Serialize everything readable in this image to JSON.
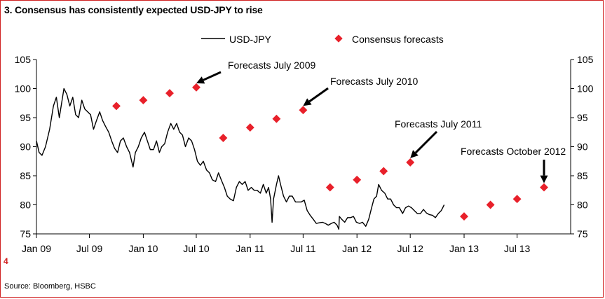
{
  "title": "3. Consensus has consistently expected USD-JPY to rise",
  "page_number": "4",
  "source": "Source: Bloomberg, HSBC",
  "colors": {
    "line": "#000000",
    "forecast": "#e8202a",
    "frame": "#d02020"
  },
  "chart_data": {
    "type": "line",
    "title": "3. Consensus has consistently expected USD-JPY to rise",
    "xlabel": "",
    "ylabel": "",
    "ylim": [
      75,
      105
    ],
    "xlim": [
      "2009-01-01",
      "2013-12-31"
    ],
    "grid": false,
    "legend": {
      "position": "top",
      "entries": [
        "USD-JPY",
        "Consensus forecasts"
      ]
    },
    "y_ticks_left": [
      "105",
      "100",
      "95",
      "90",
      "85",
      "80",
      "75"
    ],
    "y_ticks_right": [
      "105",
      "100",
      "95",
      "90",
      "85",
      "80",
      "75"
    ],
    "y_tick_values": [
      105,
      100,
      95,
      90,
      85,
      80,
      75
    ],
    "x_ticks": [
      {
        "label": "Jan 09",
        "date": "2009-01-01"
      },
      {
        "label": "Jul 09",
        "date": "2009-07-01"
      },
      {
        "label": "Jan 10",
        "date": "2010-01-01"
      },
      {
        "label": "Jul 10",
        "date": "2010-07-01"
      },
      {
        "label": "Jan 11",
        "date": "2011-01-01"
      },
      {
        "label": "Jul 11",
        "date": "2011-07-01"
      },
      {
        "label": "Jan 12",
        "date": "2012-01-01"
      },
      {
        "label": "Jul 12",
        "date": "2012-07-01"
      },
      {
        "label": "Jan 13",
        "date": "2013-01-01"
      },
      {
        "label": "Jul 13",
        "date": "2013-07-01"
      }
    ],
    "series": [
      {
        "name": "USD-JPY",
        "style": "line",
        "points": [
          [
            "2009-01-01",
            91
          ],
          [
            "2009-01-10",
            89
          ],
          [
            "2009-01-20",
            88.5
          ],
          [
            "2009-02-01",
            90
          ],
          [
            "2009-02-15",
            93
          ],
          [
            "2009-02-28",
            97
          ],
          [
            "2009-03-10",
            98.5
          ],
          [
            "2009-03-20",
            95
          ],
          [
            "2009-04-05",
            100
          ],
          [
            "2009-04-15",
            99
          ],
          [
            "2009-04-25",
            97
          ],
          [
            "2009-05-05",
            98.5
          ],
          [
            "2009-05-15",
            95.5
          ],
          [
            "2009-05-25",
            95
          ],
          [
            "2009-06-05",
            98
          ],
          [
            "2009-06-15",
            96.5
          ],
          [
            "2009-06-25",
            96
          ],
          [
            "2009-07-05",
            95.5
          ],
          [
            "2009-07-15",
            93
          ],
          [
            "2009-07-25",
            94.5
          ],
          [
            "2009-08-05",
            96
          ],
          [
            "2009-08-15",
            94.5
          ],
          [
            "2009-08-25",
            93.5
          ],
          [
            "2009-09-05",
            92.5
          ],
          [
            "2009-09-15",
            91
          ],
          [
            "2009-09-25",
            89.7
          ],
          [
            "2009-10-05",
            89
          ],
          [
            "2009-10-15",
            91
          ],
          [
            "2009-10-25",
            91.5
          ],
          [
            "2009-11-05",
            90
          ],
          [
            "2009-11-15",
            89
          ],
          [
            "2009-11-27",
            86.5
          ],
          [
            "2009-12-05",
            89
          ],
          [
            "2009-12-15",
            90
          ],
          [
            "2009-12-25",
            91.5
          ],
          [
            "2010-01-05",
            92.5
          ],
          [
            "2010-01-15",
            91
          ],
          [
            "2010-01-25",
            89.5
          ],
          [
            "2010-02-05",
            89.5
          ],
          [
            "2010-02-15",
            91
          ],
          [
            "2010-02-25",
            89
          ],
          [
            "2010-03-05",
            90
          ],
          [
            "2010-03-15",
            90.5
          ],
          [
            "2010-03-25",
            92.5
          ],
          [
            "2010-04-05",
            94
          ],
          [
            "2010-04-15",
            93
          ],
          [
            "2010-04-25",
            94
          ],
          [
            "2010-05-05",
            92.5
          ],
          [
            "2010-05-15",
            92
          ],
          [
            "2010-05-25",
            90
          ],
          [
            "2010-06-05",
            91.5
          ],
          [
            "2010-06-15",
            91
          ],
          [
            "2010-06-25",
            89.5
          ],
          [
            "2010-07-05",
            87.5
          ],
          [
            "2010-07-15",
            86.8
          ],
          [
            "2010-07-25",
            87.5
          ],
          [
            "2010-08-05",
            86
          ],
          [
            "2010-08-15",
            85.5
          ],
          [
            "2010-08-25",
            84.3
          ],
          [
            "2010-09-05",
            84
          ],
          [
            "2010-09-15",
            85.5
          ],
          [
            "2010-09-25",
            84.2
          ],
          [
            "2010-10-05",
            83
          ],
          [
            "2010-10-15",
            81.5
          ],
          [
            "2010-10-25",
            81
          ],
          [
            "2010-11-05",
            80.7
          ],
          [
            "2010-11-15",
            83
          ],
          [
            "2010-11-25",
            84
          ],
          [
            "2010-12-05",
            83.5
          ],
          [
            "2010-12-15",
            84
          ],
          [
            "2010-12-25",
            82.5
          ],
          [
            "2011-01-05",
            83
          ],
          [
            "2011-01-15",
            82.5
          ],
          [
            "2011-01-25",
            82.5
          ],
          [
            "2011-02-05",
            82
          ],
          [
            "2011-02-15",
            83.5
          ],
          [
            "2011-02-25",
            82
          ],
          [
            "2011-03-05",
            83
          ],
          [
            "2011-03-12",
            81
          ],
          [
            "2011-03-17",
            77
          ],
          [
            "2011-03-22",
            81
          ],
          [
            "2011-04-01",
            83.5
          ],
          [
            "2011-04-08",
            85
          ],
          [
            "2011-04-15",
            83.5
          ],
          [
            "2011-04-25",
            81.5
          ],
          [
            "2011-05-05",
            80.5
          ],
          [
            "2011-05-15",
            81.5
          ],
          [
            "2011-05-25",
            81.5
          ],
          [
            "2011-06-05",
            80.5
          ],
          [
            "2011-06-15",
            80.5
          ],
          [
            "2011-06-25",
            80.5
          ],
          [
            "2011-07-05",
            80.8
          ],
          [
            "2011-07-15",
            79
          ],
          [
            "2011-07-25",
            78.2
          ],
          [
            "2011-08-05",
            77.5
          ],
          [
            "2011-08-15",
            76.8
          ],
          [
            "2011-08-25",
            76.9
          ],
          [
            "2011-09-05",
            77
          ],
          [
            "2011-09-15",
            76.8
          ],
          [
            "2011-09-25",
            76.5
          ],
          [
            "2011-10-05",
            76.8
          ],
          [
            "2011-10-15",
            77
          ],
          [
            "2011-10-25",
            76.5
          ],
          [
            "2011-10-31",
            75.8
          ],
          [
            "2011-11-02",
            78
          ],
          [
            "2011-11-10",
            77.5
          ],
          [
            "2011-11-20",
            77
          ],
          [
            "2011-11-30",
            77.8
          ],
          [
            "2011-12-10",
            77.8
          ],
          [
            "2011-12-20",
            78
          ],
          [
            "2011-12-30",
            77
          ],
          [
            "2012-01-10",
            76.8
          ],
          [
            "2012-01-20",
            77
          ],
          [
            "2012-01-31",
            76.3
          ],
          [
            "2012-02-10",
            77.5
          ],
          [
            "2012-02-20",
            79.5
          ],
          [
            "2012-02-28",
            81
          ],
          [
            "2012-03-08",
            81.5
          ],
          [
            "2012-03-15",
            83.5
          ],
          [
            "2012-03-25",
            82.5
          ],
          [
            "2012-04-05",
            82
          ],
          [
            "2012-04-15",
            81
          ],
          [
            "2012-04-25",
            81
          ],
          [
            "2012-05-05",
            80
          ],
          [
            "2012-05-15",
            79.5
          ],
          [
            "2012-05-25",
            79.5
          ],
          [
            "2012-06-05",
            78.5
          ],
          [
            "2012-06-15",
            79.5
          ],
          [
            "2012-06-25",
            79.8
          ],
          [
            "2012-07-05",
            79.5
          ],
          [
            "2012-07-15",
            79
          ],
          [
            "2012-07-25",
            78.5
          ],
          [
            "2012-08-05",
            78.5
          ],
          [
            "2012-08-15",
            79.2
          ],
          [
            "2012-08-25",
            78.6
          ],
          [
            "2012-09-05",
            78.3
          ],
          [
            "2012-09-15",
            78.2
          ],
          [
            "2012-09-25",
            77.8
          ],
          [
            "2012-10-05",
            78.5
          ],
          [
            "2012-10-15",
            79
          ],
          [
            "2012-10-25",
            80
          ]
        ]
      },
      {
        "name": "Consensus forecasts",
        "style": "marker",
        "points": [
          [
            "2009-10-01",
            97
          ],
          [
            "2010-01-01",
            98
          ],
          [
            "2010-04-01",
            99.2
          ],
          [
            "2010-07-01",
            100.2
          ],
          [
            "2010-10-01",
            91.5
          ],
          [
            "2011-01-01",
            93.3
          ],
          [
            "2011-04-01",
            94.8
          ],
          [
            "2011-07-01",
            96.3
          ],
          [
            "2011-10-01",
            83
          ],
          [
            "2012-01-01",
            84.3
          ],
          [
            "2012-04-01",
            85.8
          ],
          [
            "2012-07-01",
            87.3
          ],
          [
            "2013-01-01",
            78
          ],
          [
            "2013-04-01",
            80
          ],
          [
            "2013-07-01",
            81
          ],
          [
            "2013-10-01",
            83
          ]
        ]
      }
    ],
    "annotations": [
      {
        "text": "Forecasts July 2009",
        "arrow_to": [
          "2010-07-01",
          100.2
        ]
      },
      {
        "text": "Forecasts July 2010",
        "arrow_to": [
          "2011-07-01",
          96.3
        ]
      },
      {
        "text": "Forecasts July 2011",
        "arrow_to": [
          "2012-07-01",
          87.3
        ]
      },
      {
        "text": "Forecasts October 2012",
        "arrow_to": [
          "2013-10-01",
          83
        ]
      }
    ]
  }
}
